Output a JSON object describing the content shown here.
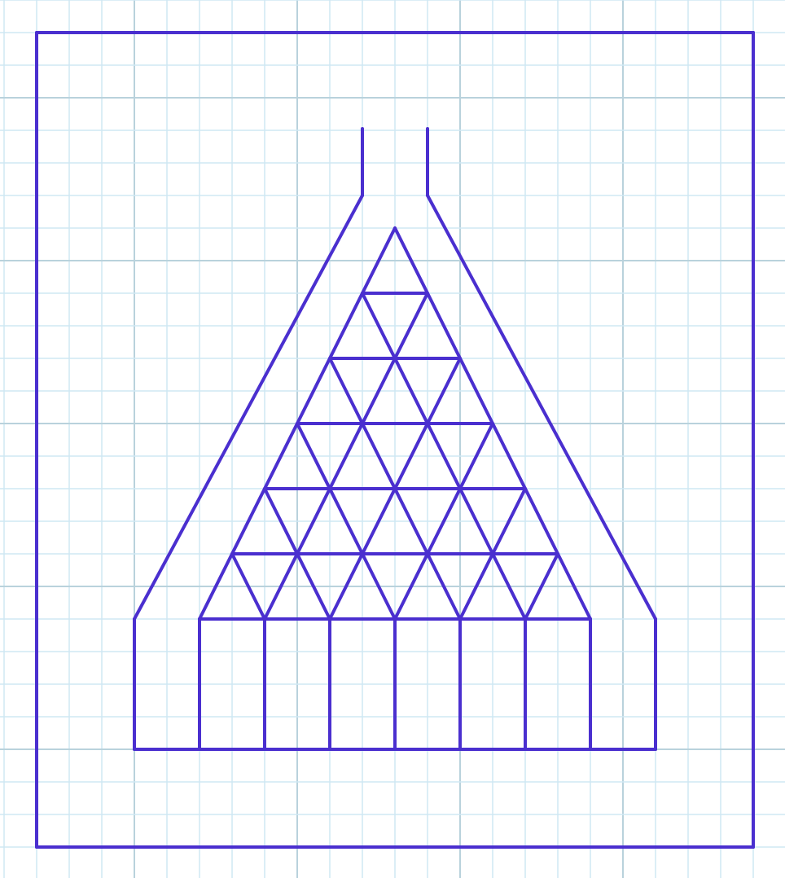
{
  "colors": {
    "background": "#ffffff",
    "grid_minor": "#cfe8f3",
    "grid_major": "#b9d2dc",
    "line": "#4a2fcf"
  },
  "diagram": {
    "description_free": true,
    "grid": true,
    "triangle_rows": 6
  }
}
